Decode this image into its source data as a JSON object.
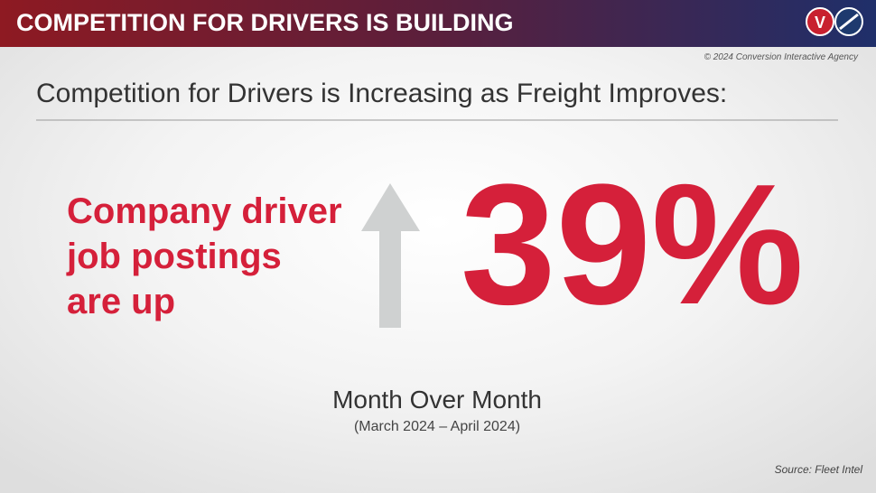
{
  "header": {
    "title": "COMPETITION FOR DRIVERS IS BUILDING"
  },
  "copyright": "© 2024 Conversion Interactive Agency",
  "heading": "Competition for Drivers is Increasing as Freight Improves:",
  "stat": {
    "label": [
      "Company driver",
      "job postings",
      "are up"
    ],
    "value": "39%",
    "period": "Month Over Month",
    "range": "(March 2024 – April 2024)"
  },
  "source": "Source: Fleet Intel"
}
